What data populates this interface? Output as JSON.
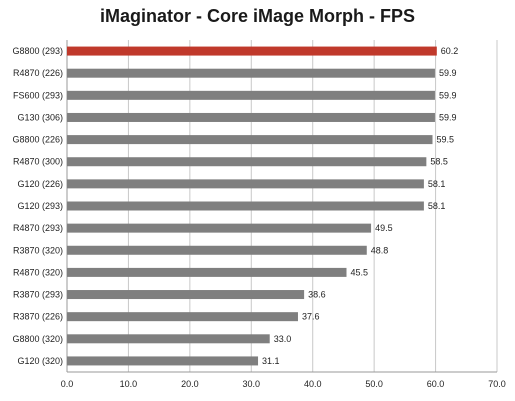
{
  "chart_data": {
    "type": "bar",
    "orientation": "horizontal",
    "title": "iMaginator - Core iMage Morph - FPS",
    "xlabel": "",
    "ylabel": "",
    "xlim": [
      0,
      70
    ],
    "xticks": [
      "0.0",
      "10.0",
      "20.0",
      "30.0",
      "40.0",
      "50.0",
      "60.0",
      "70.0"
    ],
    "grid": "vertical",
    "legend": "none",
    "categories": [
      "G8800 (293)",
      "R4870 (226)",
      "FS600 (293)",
      "G130 (306)",
      "G8800 (226)",
      "R4870 (300)",
      "G120 (226)",
      "G120 (293)",
      "R4870 (293)",
      "R3870 (320)",
      "R4870 (320)",
      "R3870 (293)",
      "R3870 (226)",
      "G8800 (320)",
      "G120 (320)"
    ],
    "values": [
      60.2,
      59.9,
      59.9,
      59.9,
      59.5,
      58.5,
      58.1,
      58.1,
      49.5,
      48.8,
      45.5,
      38.6,
      37.6,
      33.0,
      31.1
    ],
    "value_labels": [
      "60.2",
      "59.9",
      "59.9",
      "59.9",
      "59.5",
      "58.5",
      "58.1",
      "58.1",
      "49.5",
      "48.8",
      "45.5",
      "38.6",
      "37.6",
      "33.0",
      "31.1"
    ],
    "highlight_index": 0,
    "colors": {
      "bar": "#7f7f7f",
      "highlight": "#c0392b",
      "grid": "#c8c8c8",
      "axis": "#999999"
    }
  }
}
